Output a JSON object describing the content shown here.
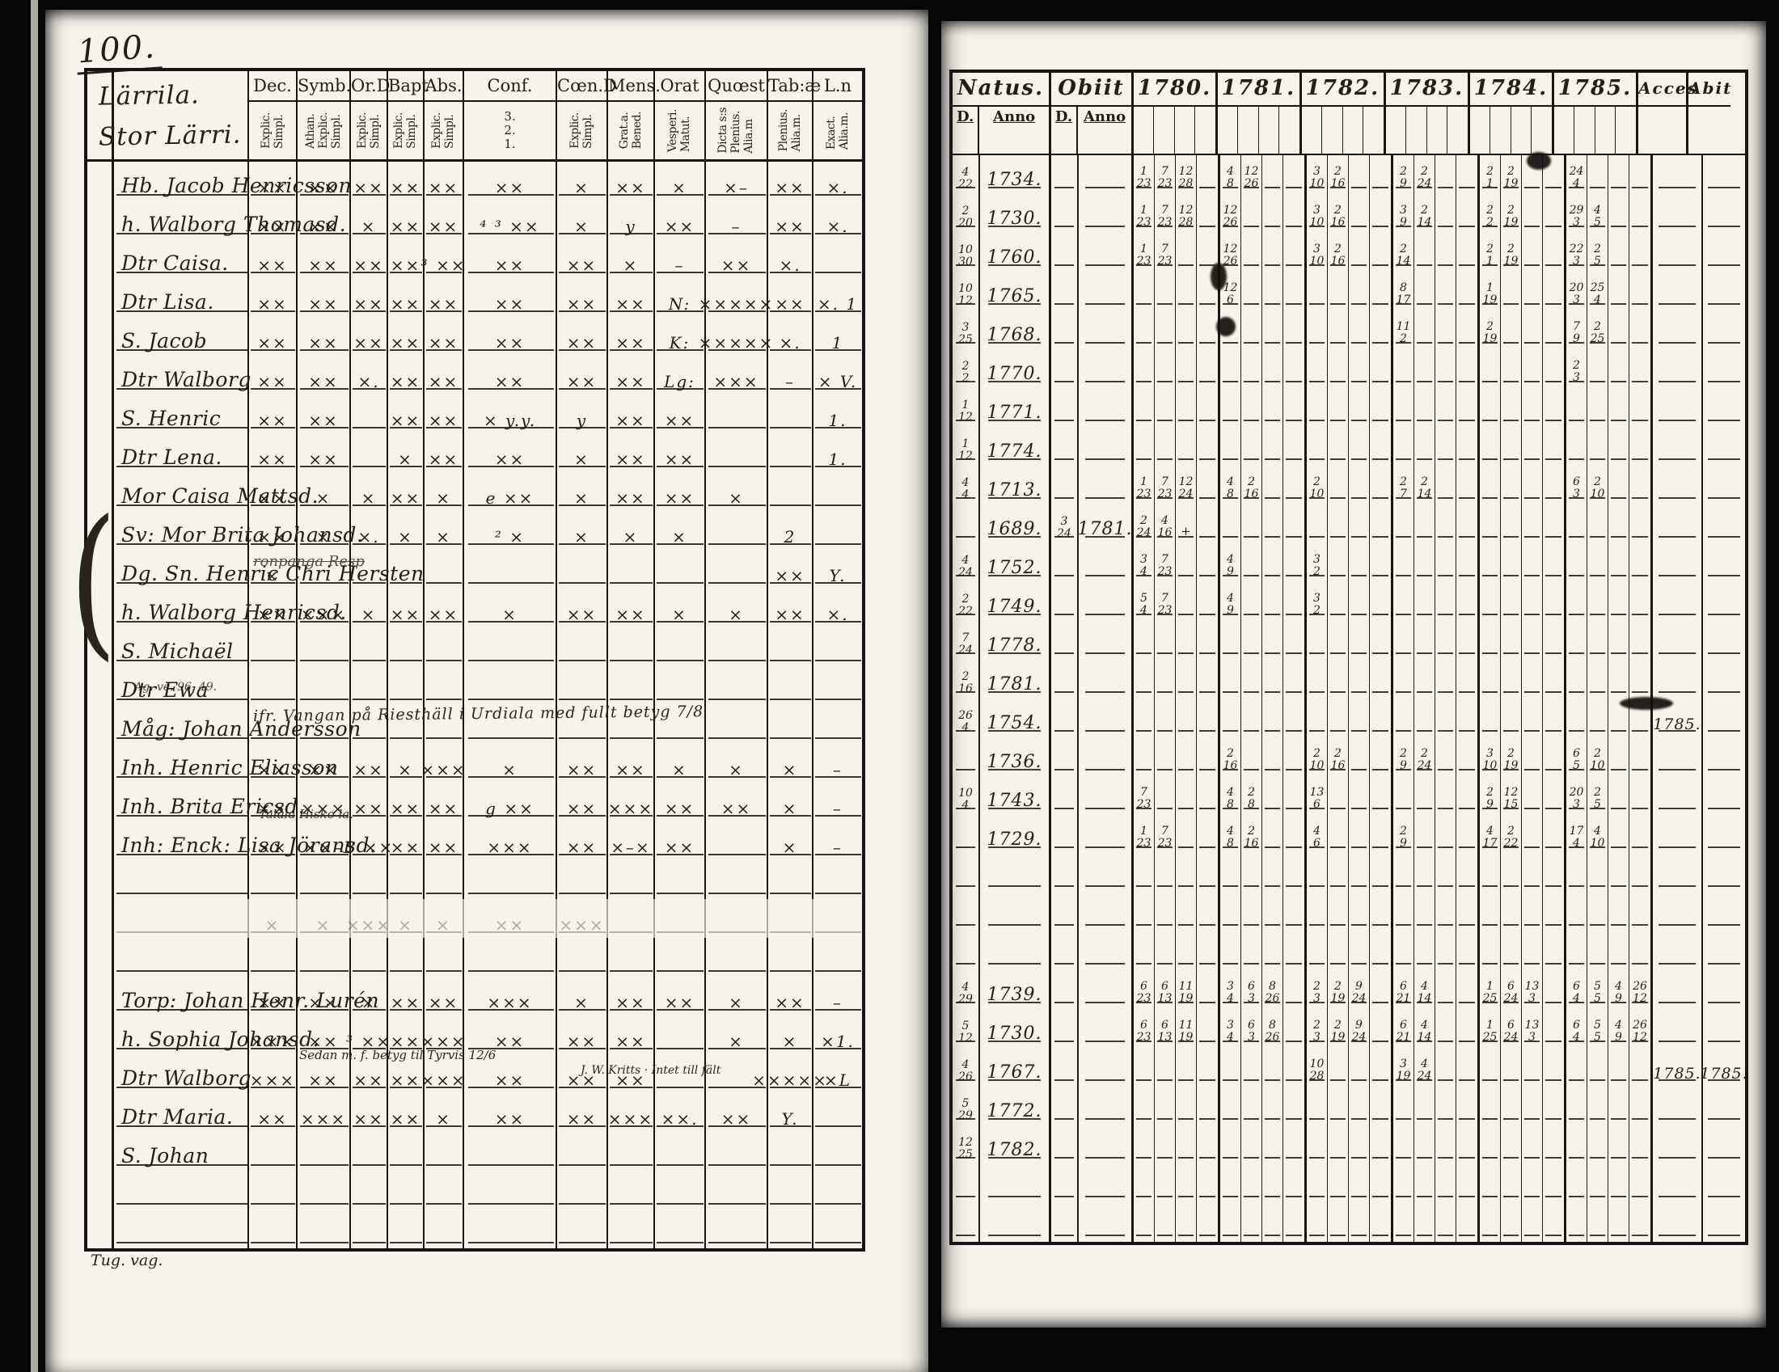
{
  "page_number": "100.",
  "colors": {
    "paper": "#f6f3ea",
    "ink": "#241e16",
    "rule": "#191512"
  },
  "left_page": {
    "heading": [
      "Lärrila.",
      "Stor Lärri."
    ],
    "footer_note": "Tug. vag.",
    "columns": [
      {
        "label": "Dec.",
        "sub": "Explic.\nSimpl."
      },
      {
        "label": "Symb.",
        "sub": "Athan.\nExplic.\nSimpl."
      },
      {
        "label": "Or.D",
        "sub": "Explic.\nSimpl."
      },
      {
        "label": "Bapt",
        "sub": "Explic.\nSimpl."
      },
      {
        "label": "Abs.",
        "sub": "Explic.\nSimpl."
      },
      {
        "label": "Conf.",
        "sub": "3.\n2.\n1."
      },
      {
        "label": "Cœn.D",
        "sub": "Explic.\nSimpl."
      },
      {
        "label": "Mens.",
        "sub": "Grat.a.\nBened."
      },
      {
        "label": "Orat",
        "sub": "Vesperi.\nMatut."
      },
      {
        "label": "Quœst",
        "sub": "Dicta s:s\nPlenius.\nAlia.m"
      },
      {
        "label": "Tab:æ",
        "sub": "Plenius.\nAlia.m."
      },
      {
        "label": "L.n",
        "sub": "Exact.\nAlia.m."
      }
    ],
    "rows": [
      {
        "name": "Hb. Jacob Henricsson",
        "marks": [
          "××",
          "××",
          "××",
          "××",
          "××",
          "××",
          "×",
          "××",
          "×",
          "×–",
          "××",
          "×."
        ]
      },
      {
        "name": "h. Walborg Thomasd.",
        "marks": [
          "××",
          "××",
          "×",
          "××",
          "××",
          "⁴ ³ ××",
          "×",
          "y",
          "××",
          "–",
          "××",
          "×."
        ]
      },
      {
        "name": "Dtr Caisa.",
        "marks": [
          "××",
          "××",
          "××",
          "××",
          "³ ××",
          "××",
          "××",
          "×",
          "–",
          "××",
          "×.",
          ""
        ]
      },
      {
        "name": "Dtr Lisa.",
        "marks": [
          "××",
          "××",
          "××",
          "××",
          "××",
          "××",
          "××",
          "××",
          "N:",
          "×××××",
          "××",
          "×. 1"
        ]
      },
      {
        "name": "S. Jacob",
        "marks": [
          "××",
          "××",
          "××",
          "××",
          "××",
          "××",
          "××",
          "××",
          "K:",
          "×××××",
          "×.",
          "1"
        ]
      },
      {
        "name": "Dtr Walborg",
        "marks": [
          "××",
          "××",
          "×.",
          "××",
          "××",
          "××",
          "××",
          "××",
          "Lg:",
          "×××",
          "–",
          "× V."
        ]
      },
      {
        "name": "S. Henric",
        "marks": [
          "××",
          "××",
          "",
          "××",
          "××",
          "× y.y.",
          "y",
          "××",
          "××",
          "",
          "",
          "1."
        ]
      },
      {
        "name": "Dtr Lena.",
        "marks": [
          "××",
          "××",
          "",
          "×",
          "××",
          "××",
          "×",
          "××",
          "××",
          "",
          "",
          "1."
        ]
      },
      {
        "name": "Mor Caisa Mattsd.",
        "marks": [
          "××",
          "×",
          "×",
          "××",
          "×",
          "e ××",
          "×",
          "××",
          "××",
          "×",
          "",
          ""
        ]
      },
      {
        "name": "Sv: Mor Brita Johansd.",
        "marks": [
          "××",
          "×",
          "×.",
          "×",
          "×",
          "² ×",
          "×",
          "×",
          "×",
          "",
          "2",
          ""
        ]
      },
      {
        "name": "Dg. Sn. Henric Chri Hersten",
        "marks": [
          "×",
          "",
          "",
          "",
          "",
          "",
          "",
          "",
          "",
          "",
          "××",
          "Y."
        ]
      },
      {
        "name": "h. Walborg Henricsd.",
        "marks": [
          "××",
          "×××",
          "×",
          "××",
          "××",
          "×",
          "××",
          "××",
          "×",
          "×",
          "××",
          "×."
        ]
      },
      {
        "name": "S. Michaël",
        "marks": [
          "",
          "",
          "",
          "",
          "",
          "",
          "",
          "",
          "",
          "",
          "",
          ""
        ]
      },
      {
        "name": "Dtr Ewa",
        "marks": [
          "",
          "",
          "",
          "",
          "",
          "",
          "",
          "",
          "",
          "",
          "",
          ""
        ]
      },
      {
        "name": "Måg: Johan Andersson",
        "marks": [
          "",
          "",
          "",
          "",
          "",
          "",
          "",
          "",
          "",
          "",
          "",
          ""
        ]
      },
      {
        "name": "Inh. Henric Eliasson",
        "marks": [
          "××",
          "××",
          "××",
          "×",
          "×××",
          "×",
          "××",
          "××",
          "×",
          "×",
          "×",
          "–"
        ]
      },
      {
        "name": "Inh. Brita Ericsd.",
        "marks": [
          "××",
          "×××",
          "××",
          "××",
          "××",
          "g ××",
          "××",
          "×××",
          "××",
          "××",
          "×",
          "–"
        ]
      },
      {
        "name": "Inh: Enck: Lisa Jöransd.",
        "marks": [
          "××",
          "××–",
          "B ××",
          "××",
          "××",
          "×××",
          "××",
          "×–×",
          "××",
          "",
          "×",
          "–"
        ]
      },
      {
        "name": "",
        "marks": [
          "",
          "",
          "",
          "",
          "",
          "",
          "",
          "",
          "",
          "",
          "",
          ""
        ]
      },
      {
        "name": "",
        "faint": true,
        "marks": [
          "×",
          "×",
          "×××",
          "×",
          "×",
          "××",
          "×××",
          "",
          "",
          "",
          "",
          ""
        ]
      },
      {
        "name": "",
        "marks": [
          "",
          "",
          "",
          "",
          "",
          "",
          "",
          "",
          "",
          "",
          "",
          ""
        ]
      },
      {
        "name": "Torp: Johan Henr. Lurén",
        "marks": [
          "××",
          "××",
          "×",
          "××",
          "××",
          "×××",
          "×",
          "××",
          "××",
          "×",
          "××",
          "–"
        ]
      },
      {
        "name": "h. Sophia Johansd.",
        "marks": [
          "×××",
          "××",
          "³ ××",
          "××",
          "×××",
          "××",
          "××",
          "××",
          "",
          "×",
          "×",
          "×1."
        ]
      },
      {
        "name": "Dtr Walborg",
        "marks": [
          "×××",
          "××",
          "××",
          "××",
          "×××",
          "××",
          "××",
          "××",
          "",
          "",
          "×××××",
          "×L"
        ]
      },
      {
        "name": "Dtr Maria.",
        "marks": [
          "××",
          "×××",
          "××",
          "××",
          "×",
          "××",
          "××",
          "×××",
          "××.",
          "××",
          "Y.",
          ""
        ]
      },
      {
        "name": "S. Johan",
        "marks": [
          "",
          "",
          "",
          "",
          "",
          "",
          "",
          "",
          "",
          "",
          "",
          ""
        ]
      },
      {
        "name": "",
        "marks": [
          "",
          "",
          "",
          "",
          "",
          "",
          "",
          "",
          "",
          "",
          "",
          ""
        ]
      },
      {
        "name": "",
        "marks": [
          "",
          "",
          "",
          "",
          "",
          "",
          "",
          "",
          "",
          "",
          "",
          ""
        ]
      }
    ],
    "notes": [
      {
        "row": 11,
        "cls": "n-struck",
        "text": "ronpanga Resp"
      },
      {
        "row": 14,
        "cls": "n-tiny",
        "text": "Ag. ve. 96. 49."
      },
      {
        "row": 15,
        "cls": "n-long",
        "text": "ifr. Vangan på Riesthäll i Urdiala med fullt betyg 7/8"
      },
      {
        "row": 18,
        "cls": "n-tiny2",
        "text": "Talala Hisko la."
      },
      {
        "row": 24,
        "cls": "n-over",
        "text": "Sedan m. f. betyg til Tyrvis 12/6"
      },
      {
        "row": 24,
        "cls": "n-over2",
        "text": "J. W. Kritts · Intet till fält"
      }
    ]
  },
  "right_page": {
    "natus_label": "Natus.",
    "obiit_label": "Obiit",
    "day_label": "D.",
    "anno_label": "Anno",
    "years": [
      "1780.",
      "1781.",
      "1782.",
      "1783.",
      "1784.",
      "1785."
    ],
    "acces_label": "Acces",
    "abit_label": "Abit",
    "rows": [
      {
        "nd": "4/22",
        "na": "1734.",
        "od": "",
        "oa": "",
        "y": [
          [
            "1/23",
            "7/23",
            "12/28"
          ],
          [
            "4/8",
            "12/26"
          ],
          [
            "3/10",
            "2/16"
          ],
          [
            "2/9",
            "2/24"
          ],
          [
            "2/1",
            "2/19"
          ],
          [
            "24/4"
          ]
        ],
        "acces": "",
        "abit": ""
      },
      {
        "nd": "2/20",
        "na": "1730.",
        "od": "",
        "oa": "",
        "y": [
          [
            "1/23",
            "7/23",
            "12/28"
          ],
          [
            "12/26"
          ],
          [
            "3/10",
            "2/16"
          ],
          [
            "3/9",
            "2/14"
          ],
          [
            "2/2",
            "2/19"
          ],
          [
            "29/3",
            "4/5"
          ]
        ],
        "acces": "",
        "abit": ""
      },
      {
        "nd": "10/30",
        "na": "1760.",
        "od": "",
        "oa": "",
        "y": [
          [
            "1/23",
            "7/23"
          ],
          [
            "12/26"
          ],
          [
            "3/10",
            "2/16"
          ],
          [
            "2/14"
          ],
          [
            "2/1",
            "2/19"
          ],
          [
            "22/3",
            "2/5"
          ]
        ],
        "acces": "",
        "abit": ""
      },
      {
        "nd": "10/12",
        "na": "1765.",
        "od": "",
        "oa": "",
        "y": [
          [],
          [
            "12/6"
          ],
          [],
          [
            "8/17"
          ],
          [
            "1/19"
          ],
          [
            "20/3",
            "25/4"
          ]
        ],
        "acces": "",
        "abit": ""
      },
      {
        "nd": "3/25",
        "na": "1768.",
        "od": "",
        "oa": "",
        "y": [
          [],
          [],
          [],
          [
            "11/2"
          ],
          [
            "2/19"
          ],
          [
            "7/9",
            "2/25"
          ]
        ],
        "acces": "",
        "abit": ""
      },
      {
        "nd": "2/2",
        "na": "1770.",
        "od": "",
        "oa": "",
        "y": [
          [],
          [],
          [],
          [],
          [],
          [
            "2/3"
          ]
        ],
        "acces": "",
        "abit": ""
      },
      {
        "nd": "1/12",
        "na": "1771.",
        "od": "",
        "oa": "",
        "y": [
          [],
          [],
          [],
          [],
          [],
          []
        ],
        "acces": "",
        "abit": ""
      },
      {
        "nd": "1/12",
        "na": "1774.",
        "od": "",
        "oa": "",
        "y": [
          [],
          [],
          [],
          [],
          [],
          []
        ],
        "acces": "",
        "abit": ""
      },
      {
        "nd": "4/4",
        "na": "1713.",
        "od": "",
        "oa": "",
        "y": [
          [
            "1/23",
            "7/23",
            "12/24"
          ],
          [
            "4/8",
            "2/16"
          ],
          [
            "2/10"
          ],
          [
            "2/7",
            "2/14"
          ],
          [],
          [
            "6/3",
            "2/10"
          ]
        ],
        "acces": "",
        "abit": ""
      },
      {
        "nd": "",
        "na": "1689.",
        "od": "3/24",
        "oa": "1781.",
        "y": [
          [
            "2/24",
            "4/16",
            "+"
          ],
          [],
          [],
          [],
          [],
          []
        ],
        "acces": "",
        "abit": ""
      },
      {
        "nd": "4/24",
        "na": "1752.",
        "od": "",
        "oa": "",
        "y": [
          [
            "3/4",
            "7/23"
          ],
          [
            "4/9"
          ],
          [
            "3/2"
          ],
          [],
          [],
          []
        ],
        "acces": "",
        "abit": ""
      },
      {
        "nd": "2/22",
        "na": "1749.",
        "od": "",
        "oa": "",
        "y": [
          [
            "5/4",
            "7/23"
          ],
          [
            "4/9"
          ],
          [
            "3/2"
          ],
          [],
          [],
          []
        ],
        "acces": "",
        "abit": ""
      },
      {
        "nd": "7/24",
        "na": "1778.",
        "od": "",
        "oa": "",
        "y": [
          [],
          [],
          [],
          [],
          [],
          []
        ],
        "acces": "",
        "abit": ""
      },
      {
        "nd": "2/16",
        "na": "1781.",
        "od": "",
        "oa": "",
        "y": [
          [],
          [],
          [],
          [],
          [],
          []
        ],
        "acces": "",
        "abit": ""
      },
      {
        "nd": "26/4",
        "na": "1754.",
        "od": "",
        "oa": "",
        "y": [
          [],
          [],
          [],
          [],
          [],
          []
        ],
        "acces": "1785.",
        "abit": ""
      },
      {
        "nd": "",
        "na": "1736.",
        "od": "",
        "oa": "",
        "y": [
          [],
          [
            "2/16"
          ],
          [
            "2/10",
            "2/16"
          ],
          [
            "2/9",
            "2/24"
          ],
          [
            "3/10",
            "2/19"
          ],
          [
            "6/5",
            "2/10"
          ]
        ],
        "acces": "",
        "abit": ""
      },
      {
        "nd": "10/4",
        "na": "1743.",
        "od": "",
        "oa": "",
        "y": [
          [
            "7/23"
          ],
          [
            "4/8",
            "2/8"
          ],
          [
            "13/6"
          ],
          [],
          [
            "2/9",
            "12/15"
          ],
          [
            "20/3",
            "2/5"
          ]
        ],
        "acces": "",
        "abit": ""
      },
      {
        "nd": "",
        "na": "1729.",
        "od": "",
        "oa": "",
        "y": [
          [
            "1/23",
            "7/23"
          ],
          [
            "4/8",
            "2/16"
          ],
          [
            "4/6"
          ],
          [
            "2/9"
          ],
          [
            "4/17",
            "2/22"
          ],
          [
            "17/4",
            "4/10"
          ]
        ],
        "acces": "",
        "abit": ""
      },
      {
        "nd": "",
        "na": "",
        "od": "",
        "oa": "",
        "y": [
          [],
          [],
          [],
          [],
          [],
          []
        ],
        "acces": "",
        "abit": ""
      },
      {
        "nd": "",
        "na": "",
        "od": "",
        "oa": "",
        "y": [
          [],
          [],
          [],
          [],
          [],
          []
        ],
        "acces": "",
        "abit": ""
      },
      {
        "nd": "",
        "na": "",
        "od": "",
        "oa": "",
        "y": [
          [],
          [],
          [],
          [],
          [],
          []
        ],
        "acces": "",
        "abit": ""
      },
      {
        "nd": "4/29",
        "na": "1739.",
        "od": "",
        "oa": "",
        "y": [
          [
            "6/23",
            "6/13",
            "11/19"
          ],
          [
            "3/4",
            "6/3",
            "8/26"
          ],
          [
            "2/3",
            "2/19",
            "9/24"
          ],
          [
            "6/21",
            "4/14"
          ],
          [
            "1/25",
            "6/24",
            "13/3"
          ],
          [
            "6/4",
            "5/5",
            "4/9",
            "26/12"
          ]
        ],
        "acces": "",
        "abit": ""
      },
      {
        "nd": "5/12",
        "na": "1730.",
        "od": "",
        "oa": "",
        "y": [
          [
            "6/23",
            "6/13",
            "11/19"
          ],
          [
            "3/4",
            "6/3",
            "8/26"
          ],
          [
            "2/3",
            "2/19",
            "9/24"
          ],
          [
            "6/21",
            "4/14"
          ],
          [
            "1/25",
            "6/24",
            "13/3"
          ],
          [
            "6/4",
            "5/5",
            "4/9",
            "26/12"
          ]
        ],
        "acces": "",
        "abit": ""
      },
      {
        "nd": "4/26",
        "na": "1767.",
        "od": "",
        "oa": "",
        "y": [
          [],
          [],
          [
            "10/28"
          ],
          [
            "3/19",
            "4/24"
          ],
          [],
          []
        ],
        "acces": "1785.",
        "abit": "1785."
      },
      {
        "nd": "5/29",
        "na": "1772.",
        "od": "",
        "oa": "",
        "y": [
          [],
          [],
          [],
          [],
          [],
          []
        ],
        "acces": "",
        "abit": ""
      },
      {
        "nd": "12/25",
        "na": "1782.",
        "od": "",
        "oa": "",
        "y": [
          [],
          [],
          [],
          [],
          [],
          []
        ],
        "acces": "",
        "abit": ""
      },
      {
        "nd": "",
        "na": "",
        "od": "",
        "oa": "",
        "y": [
          [],
          [],
          [],
          [],
          [],
          []
        ],
        "acces": "",
        "abit": ""
      },
      {
        "nd": "",
        "na": "",
        "od": "",
        "oa": "",
        "y": [
          [],
          [],
          [],
          [],
          [],
          []
        ],
        "acces": "",
        "abit": ""
      }
    ]
  }
}
